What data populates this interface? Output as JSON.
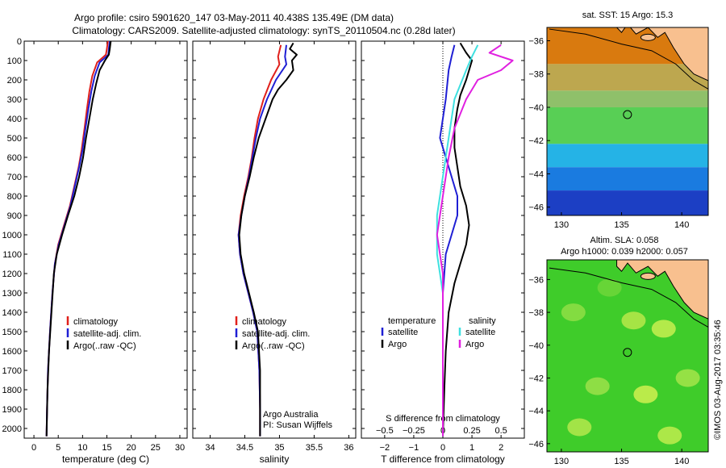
{
  "title": {
    "line1": "Argo profile: csiro 5901620_147 03-May-2011 40.438S 135.49E (DM data)",
    "line2": "Climatology: CARS2009. Satellite-adjusted climatology: synTS_20110504.nc (0.28d later)"
  },
  "depth_ticks": [
    0,
    100,
    200,
    300,
    400,
    500,
    600,
    700,
    800,
    900,
    1000,
    1100,
    1200,
    1300,
    1400,
    1500,
    1600,
    1700,
    1800,
    1900,
    2000
  ],
  "colors": {
    "climatology": "#e0201b",
    "satellite": "#1f1fd4",
    "argo": "#000000",
    "sat_temp": "#1f1fd4",
    "sat_sal": "#3fe0e0",
    "argo_sal": "#e020e0",
    "land": "#f8c08f"
  },
  "chart_data": [
    {
      "type": "line",
      "xlabel": "temperature (deg C)",
      "xlim": [
        -2,
        31.5
      ],
      "ylim": [
        2050,
        0
      ],
      "x_ticks": [
        0,
        5,
        10,
        15,
        20,
        25,
        30
      ],
      "legend": {
        "placement": "lower-center",
        "entries": [
          "climatology",
          "satellite-adj. clim.",
          "Argo(..raw -QC)"
        ]
      },
      "series": [
        {
          "name": "climatology",
          "color": "#e0201b",
          "points": [
            [
              15.2,
              0
            ],
            [
              15.0,
              40
            ],
            [
              14.8,
              70
            ],
            [
              13.0,
              110
            ],
            [
              12.0,
              180
            ],
            [
              11.4,
              260
            ],
            [
              10.9,
              350
            ],
            [
              10.4,
              450
            ],
            [
              9.8,
              560
            ],
            [
              9.2,
              650
            ],
            [
              8.3,
              750
            ],
            [
              7.4,
              850
            ],
            [
              6.2,
              950
            ],
            [
              5.0,
              1050
            ],
            [
              4.3,
              1150
            ],
            [
              3.8,
              1300
            ],
            [
              3.3,
              1500
            ],
            [
              2.9,
              1700
            ],
            [
              2.7,
              1900
            ],
            [
              2.6,
              2040
            ]
          ]
        },
        {
          "name": "satellite-adj. clim.",
          "color": "#1f1fd4",
          "points": [
            [
              15.6,
              0
            ],
            [
              15.4,
              40
            ],
            [
              15.3,
              70
            ],
            [
              13.5,
              110
            ],
            [
              12.5,
              180
            ],
            [
              11.8,
              260
            ],
            [
              11.2,
              350
            ],
            [
              10.6,
              450
            ],
            [
              10.0,
              560
            ],
            [
              9.3,
              650
            ],
            [
              8.4,
              750
            ],
            [
              7.5,
              850
            ],
            [
              6.3,
              950
            ],
            [
              5.1,
              1050
            ],
            [
              4.3,
              1150
            ],
            [
              3.8,
              1300
            ],
            [
              3.3,
              1500
            ],
            [
              2.9,
              1700
            ],
            [
              2.7,
              1900
            ],
            [
              2.6,
              2040
            ]
          ]
        },
        {
          "name": "Argo(..raw -QC)",
          "color": "#000000",
          "points": [
            [
              15.8,
              0
            ],
            [
              15.6,
              40
            ],
            [
              15.4,
              70
            ],
            [
              14.6,
              100
            ],
            [
              13.5,
              150
            ],
            [
              12.8,
              220
            ],
            [
              12.1,
              300
            ],
            [
              11.4,
              400
            ],
            [
              10.7,
              500
            ],
            [
              10.1,
              600
            ],
            [
              9.3,
              700
            ],
            [
              8.3,
              800
            ],
            [
              7.0,
              900
            ],
            [
              5.8,
              1000
            ],
            [
              4.7,
              1100
            ],
            [
              4.1,
              1200
            ],
            [
              3.6,
              1400
            ],
            [
              3.1,
              1600
            ],
            [
              2.8,
              1800
            ],
            [
              2.6,
              2040
            ]
          ]
        }
      ]
    },
    {
      "type": "line",
      "xlabel": "salinity",
      "xlim": [
        33.75,
        36.1
      ],
      "ylim": [
        2050,
        0
      ],
      "x_ticks": [
        34,
        34.5,
        35,
        35.5,
        36
      ],
      "x_tick_labels": [
        "34",
        "34.5",
        "35",
        "35.5",
        "36"
      ],
      "legend": {
        "placement": "lower-center",
        "entries": [
          "climatology",
          "satellite-adj. clim.",
          "Argo(..raw -QC)"
        ]
      },
      "annotation": [
        "Argo Australia",
        "PI: Susan Wijffels"
      ],
      "series": [
        {
          "name": "climatology",
          "color": "#e0201b",
          "points": [
            [
              35.02,
              20
            ],
            [
              34.98,
              80
            ],
            [
              35.0,
              120
            ],
            [
              34.88,
              200
            ],
            [
              34.77,
              300
            ],
            [
              34.69,
              400
            ],
            [
              34.64,
              500
            ],
            [
              34.6,
              600
            ],
            [
              34.55,
              700
            ],
            [
              34.49,
              800
            ],
            [
              34.44,
              900
            ],
            [
              34.41,
              1000
            ],
            [
              34.43,
              1100
            ],
            [
              34.48,
              1200
            ],
            [
              34.55,
              1300
            ],
            [
              34.62,
              1400
            ],
            [
              34.68,
              1500
            ],
            [
              34.71,
              1700
            ],
            [
              34.72,
              1900
            ],
            [
              34.72,
              2040
            ]
          ]
        },
        {
          "name": "satellite-adj. clim.",
          "color": "#1f1fd4",
          "points": [
            [
              35.1,
              20
            ],
            [
              35.08,
              80
            ],
            [
              35.1,
              120
            ],
            [
              34.95,
              200
            ],
            [
              34.82,
              300
            ],
            [
              34.72,
              400
            ],
            [
              34.66,
              500
            ],
            [
              34.61,
              600
            ],
            [
              34.56,
              700
            ],
            [
              34.5,
              800
            ],
            [
              34.45,
              900
            ],
            [
              34.41,
              1000
            ],
            [
              34.43,
              1100
            ],
            [
              34.48,
              1200
            ],
            [
              34.55,
              1300
            ],
            [
              34.62,
              1400
            ],
            [
              34.68,
              1500
            ],
            [
              34.71,
              1700
            ],
            [
              34.72,
              1900
            ],
            [
              34.72,
              2040
            ]
          ]
        },
        {
          "name": "Argo(..raw -QC)",
          "color": "#000000",
          "points": [
            [
              35.2,
              10
            ],
            [
              35.15,
              40
            ],
            [
              35.25,
              70
            ],
            [
              35.18,
              100
            ],
            [
              35.2,
              150
            ],
            [
              35.1,
              200
            ],
            [
              34.98,
              250
            ],
            [
              34.9,
              300
            ],
            [
              34.8,
              400
            ],
            [
              34.7,
              500
            ],
            [
              34.63,
              600
            ],
            [
              34.57,
              700
            ],
            [
              34.5,
              800
            ],
            [
              34.45,
              900
            ],
            [
              34.42,
              1000
            ],
            [
              34.44,
              1100
            ],
            [
              34.49,
              1200
            ],
            [
              34.56,
              1300
            ],
            [
              34.63,
              1400
            ],
            [
              34.69,
              1500
            ],
            [
              34.72,
              1700
            ],
            [
              34.72,
              1900
            ],
            [
              34.72,
              2040
            ]
          ]
        }
      ]
    },
    {
      "type": "line",
      "xlabel": "T difference from climatology",
      "xlabel_top": "S difference from climatology",
      "xlim": [
        -2.8,
        2.8
      ],
      "ylim": [
        2050,
        0
      ],
      "x_ticks": [
        -2,
        -1,
        0,
        1,
        2
      ],
      "x_tick_labels": [
        "−2",
        "−1",
        "0",
        "1",
        "2"
      ],
      "x_ticks_top": [
        -0.5,
        -0.25,
        0,
        0.25,
        0.5
      ],
      "x_tick_labels_top": [
        "−0.5",
        "−0.25",
        "0",
        "0.25",
        "0.5"
      ],
      "legend": {
        "placement": "lower-center",
        "headers": [
          "temperature",
          "salinity"
        ],
        "entries": [
          "satellite",
          "Argo",
          "satellite",
          "Argo"
        ]
      },
      "series": [
        {
          "name": "satellite",
          "variable": "temperature",
          "color": "#1f1fd4",
          "points": [
            [
              0.4,
              20
            ],
            [
              0.3,
              80
            ],
            [
              0.2,
              150
            ],
            [
              0.1,
              300
            ],
            [
              -0.1,
              500
            ],
            [
              0.2,
              650
            ],
            [
              0.5,
              800
            ],
            [
              0.5,
              900
            ],
            [
              0.3,
              1000
            ],
            [
              0.1,
              1100
            ],
            [
              0,
              1300
            ],
            [
              0,
              2040
            ]
          ]
        },
        {
          "name": "Argo",
          "variable": "temperature",
          "color": "#000000",
          "points": [
            [
              0.6,
              10
            ],
            [
              0.8,
              60
            ],
            [
              1.0,
              100
            ],
            [
              0.9,
              150
            ],
            [
              0.8,
              200
            ],
            [
              0.6,
              280
            ],
            [
              0.5,
              350
            ],
            [
              0.4,
              450
            ],
            [
              0.4,
              550
            ],
            [
              0.5,
              650
            ],
            [
              0.6,
              750
            ],
            [
              0.8,
              850
            ],
            [
              0.9,
              950
            ],
            [
              0.8,
              1050
            ],
            [
              0.6,
              1150
            ],
            [
              0.4,
              1250
            ],
            [
              0.2,
              1400
            ],
            [
              0.1,
              1600
            ],
            [
              0.05,
              1800
            ],
            [
              0,
              2040
            ]
          ]
        },
        {
          "name": "satellite",
          "variable": "salinity",
          "color": "#3fe0e0",
          "points": [
            [
              0.3,
              20
            ],
            [
              0.25,
              80
            ],
            [
              0.2,
              150
            ],
            [
              0.1,
              300
            ],
            [
              0.05,
              500
            ],
            [
              0,
              700
            ],
            [
              -0.05,
              900
            ],
            [
              -0.05,
              1100
            ],
            [
              0,
              1300
            ],
            [
              0,
              2040
            ]
          ]
        },
        {
          "name": "Argo",
          "variable": "salinity",
          "color": "#e020e0",
          "points": [
            [
              0.5,
              20
            ],
            [
              0.4,
              60
            ],
            [
              0.6,
              100
            ],
            [
              0.5,
              150
            ],
            [
              0.3,
              200
            ],
            [
              0.2,
              300
            ],
            [
              0.1,
              450
            ],
            [
              0.05,
              600
            ],
            [
              0,
              800
            ],
            [
              -0.05,
              1000
            ],
            [
              0,
              1200
            ],
            [
              0,
              2040
            ]
          ]
        }
      ]
    },
    {
      "type": "heatmap",
      "title": "sat. SST: 15 Argo: 15.3",
      "xlim": [
        128.8,
        142.2
      ],
      "ylim": [
        -46.5,
        -35.2
      ],
      "x_ticks": [
        130,
        135,
        140
      ],
      "y_ticks": [
        -36,
        -38,
        -40,
        -42,
        -44,
        -46
      ],
      "y_tick_labels": [
        "−36",
        "−38",
        "−40",
        "−42",
        "−44",
        "−46"
      ],
      "marker": {
        "lon": 135.49,
        "lat": -40.438
      },
      "color_bands": [
        {
          "lat_top": -35.2,
          "lat_bottom": -37.4,
          "color": "#d97a0f"
        },
        {
          "lat_top": -37.4,
          "lat_bottom": -39.0,
          "color": "#bda74f"
        },
        {
          "lat_top": -39.0,
          "lat_bottom": -40.0,
          "color": "#8fc06a"
        },
        {
          "lat_top": -40.0,
          "lat_bottom": -42.2,
          "color": "#58cf55"
        },
        {
          "lat_top": -42.2,
          "lat_bottom": -43.6,
          "color": "#25b3e6"
        },
        {
          "lat_top": -43.6,
          "lat_bottom": -45.0,
          "color": "#1a7be0"
        },
        {
          "lat_top": -45.0,
          "lat_bottom": -46.5,
          "color": "#1c3fc4"
        }
      ]
    },
    {
      "type": "heatmap",
      "title_lines": [
        "Altim. SLA: 0.058",
        "Argo h1000: 0.039 h2000: 0.057"
      ],
      "xlim": [
        128.8,
        142.2
      ],
      "ylim": [
        -46.5,
        -34.8
      ],
      "x_ticks": [
        130,
        135,
        140
      ],
      "y_ticks": [
        -36,
        -38,
        -40,
        -42,
        -44,
        -46
      ],
      "y_tick_labels": [
        "−36",
        "−38",
        "−40",
        "−42",
        "−44",
        "−46"
      ],
      "marker": {
        "lon": 135.49,
        "lat": -40.438
      },
      "base_color": "#3fcc2a",
      "blobs": [
        {
          "lon": 131.0,
          "lat": -38.0,
          "color": "#8fde45"
        },
        {
          "lon": 136.0,
          "lat": -38.5,
          "color": "#b8e84a"
        },
        {
          "lon": 138.5,
          "lat": -39.0,
          "color": "#c8ee50"
        },
        {
          "lon": 133.0,
          "lat": -42.5,
          "color": "#9ce04a"
        },
        {
          "lon": 137.0,
          "lat": -43.0,
          "color": "#d0f050"
        },
        {
          "lon": 140.5,
          "lat": -42.0,
          "color": "#a4e44a"
        },
        {
          "lon": 131.5,
          "lat": -45.0,
          "color": "#b4e84c"
        },
        {
          "lon": 139.0,
          "lat": -45.5,
          "color": "#c0ec4e"
        },
        {
          "lon": 134.0,
          "lat": -36.5,
          "color": "#6ed63a"
        }
      ]
    }
  ],
  "side_label": "©IMOS 03-Aug-2017 03:35:46"
}
